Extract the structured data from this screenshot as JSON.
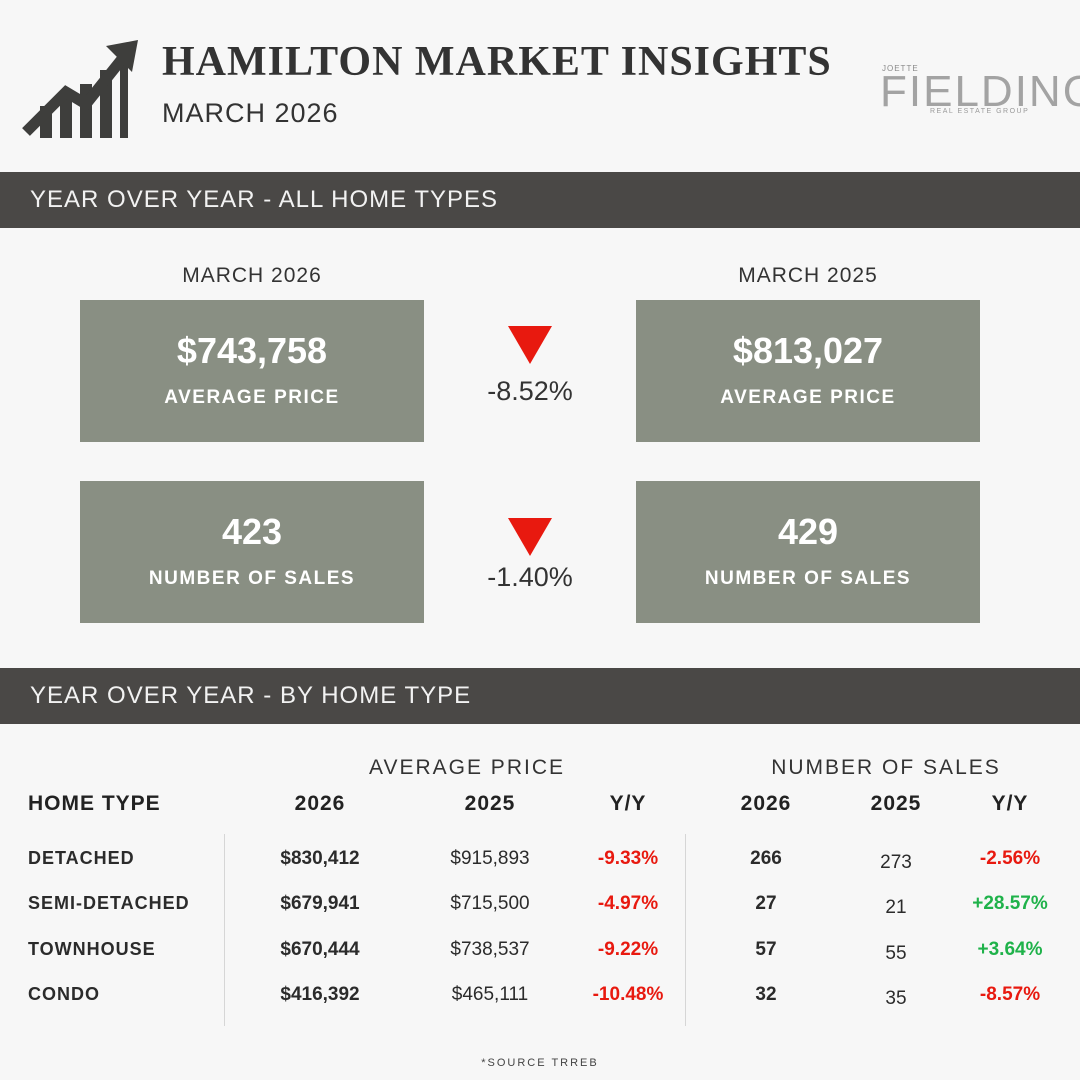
{
  "header": {
    "title": "HAMILTON MARKET INSIGHTS",
    "subtitle": "MARCH 2026",
    "logo_small": "JOETTE",
    "logo_main": "FIELDING",
    "logo_sub": "REAL ESTATE GROUP",
    "icon": "growth-chart-icon"
  },
  "section_all": {
    "heading": "YEAR OVER YEAR - ALL HOME TYPES",
    "current_label": "MARCH 2026",
    "previous_label": "MARCH 2025",
    "price": {
      "current_value": "$743,758",
      "previous_value": "$813,027",
      "label": "AVERAGE PRICE",
      "change": "-8.52%"
    },
    "sales": {
      "current_value": "423",
      "previous_value": "429",
      "label": "NUMBER OF SALES",
      "change": "-1.40%"
    },
    "down_color": "#e8190f"
  },
  "section_type": {
    "heading": "YEAR OVER YEAR - BY HOME TYPE",
    "group_price": "AVERAGE PRICE",
    "group_sales": "NUMBER OF SALES",
    "headers": {
      "type": "HOME TYPE",
      "price_2026": "2026",
      "price_2025": "2025",
      "price_yy": "Y/Y",
      "sales_2026": "2026",
      "sales_2025": "2025",
      "sales_yy": "Y/Y"
    },
    "rows": [
      {
        "type": "DETACHED",
        "p26": "$830,412",
        "p25": "$915,893",
        "pyy": "-9.33%",
        "s26": "266",
        "s25": "273",
        "syy": "-2.56%"
      },
      {
        "type": "SEMI-DETACHED",
        "p26": "$679,941",
        "p25": "$715,500",
        "pyy": "-4.97%",
        "s26": "27",
        "s25": "21",
        "syy": "+28.57%"
      },
      {
        "type": "TOWNHOUSE",
        "p26": "$670,444",
        "p25": "$738,537",
        "pyy": "-9.22%",
        "s26": "57",
        "s25": "55",
        "syy": "+3.64%"
      },
      {
        "type": "CONDO",
        "p26": "$416,392",
        "p25": "$465,111",
        "pyy": "-10.48%",
        "s26": "32",
        "s25": "35",
        "syy": "-8.57%"
      }
    ],
    "positive_color": "#1fb24a",
    "negative_color": "#e8190f"
  },
  "footer": {
    "source": "*SOURCE TRREB"
  }
}
